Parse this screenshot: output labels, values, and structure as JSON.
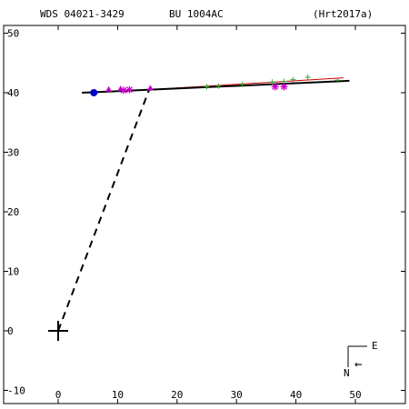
{
  "header": {
    "wds": "WDS 04021-3429",
    "pair": "BU 1004AC",
    "ref": "(Hrt2017a)"
  },
  "compass": {
    "east": "E",
    "north": "N",
    "arrow": "←"
  },
  "colors": {
    "orbit": "#000000",
    "fit": "#cc0000",
    "baseline": "#000000",
    "first_obs": "#0000cc",
    "micrometer": "#33aa33",
    "speckle": "#cc00cc"
  },
  "chart_data": {
    "type": "scatter",
    "title": "",
    "xlabel": "",
    "ylabel": "",
    "xlim": [
      -9,
      58
    ],
    "ylim": [
      -12,
      53
    ],
    "xticks": [
      0,
      10,
      20,
      30,
      40,
      50
    ],
    "yticks": [
      -10,
      0,
      10,
      20,
      30,
      40,
      50
    ],
    "x_tick_labels": [
      "0",
      "10",
      "20",
      "30",
      "40",
      "50"
    ],
    "y_tick_labels": [
      "-10",
      "0",
      "10",
      "20",
      "30",
      "40",
      "50"
    ],
    "primary": [
      0,
      0
    ],
    "baseline": {
      "from": [
        0,
        0
      ],
      "to": [
        15.3,
        40.5
      ]
    },
    "orbit_line": {
      "from": [
        4.0,
        40.0
      ],
      "to": [
        49.0,
        42.0
      ]
    },
    "fit_line": {
      "from": [
        15.0,
        40.5
      ],
      "to": [
        48.0,
        42.5
      ]
    },
    "first_observation": [
      6.0,
      40.0
    ],
    "micrometer_points": [
      [
        25.0,
        41.0
      ],
      [
        27.0,
        41.1
      ],
      [
        31.0,
        41.4
      ],
      [
        36.0,
        41.8
      ],
      [
        38.0,
        41.9
      ],
      [
        39.5,
        42.2
      ],
      [
        42.0,
        42.6
      ],
      [
        47.0,
        42.1
      ]
    ],
    "triangle_points": [
      [
        8.5,
        40.5
      ],
      [
        10.5,
        40.6
      ],
      [
        15.5,
        40.7
      ]
    ],
    "speckle_points": [
      [
        11.0,
        40.4
      ],
      [
        12.0,
        40.5
      ],
      [
        36.5,
        41.0
      ],
      [
        38.0,
        41.0
      ]
    ]
  }
}
